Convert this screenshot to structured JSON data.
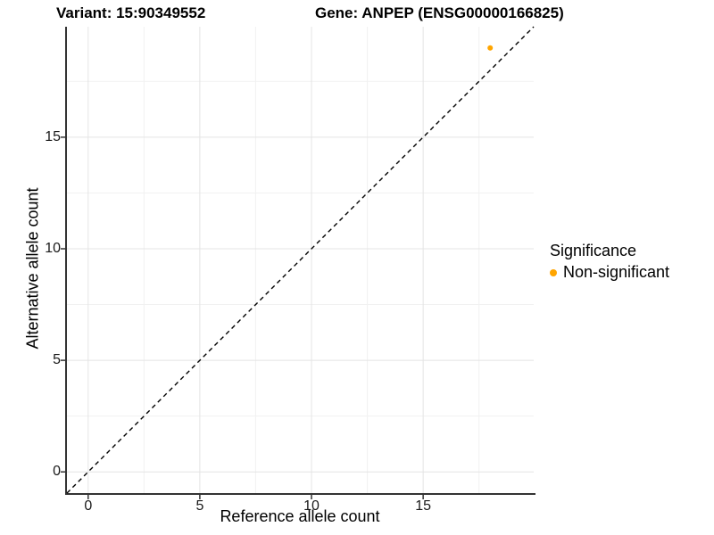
{
  "figure": {
    "title_left": "Variant: 15:90349552",
    "title_right": "Gene: ANPEP (ENSG00000166825)"
  },
  "chart_data": {
    "type": "scatter",
    "xlabel": "Reference allele count",
    "ylabel": "Alternative allele count",
    "xlim": [
      -0.95,
      19.95
    ],
    "ylim": [
      -0.95,
      19.95
    ],
    "xticks": [
      0,
      5,
      10,
      15
    ],
    "yticks": [
      0,
      5,
      10,
      15
    ],
    "minor_xticks": [
      2.5,
      7.5,
      12.5,
      17.5
    ],
    "minor_yticks": [
      2.5,
      7.5,
      12.5,
      17.5
    ],
    "grid": true,
    "identity_line": {
      "slope": 1,
      "intercept": 0,
      "style": "dashed",
      "color": "#000000"
    },
    "series": [
      {
        "name": "Non-significant",
        "color": "#FFA500",
        "points": [
          {
            "x": 18,
            "y": 19
          }
        ]
      }
    ],
    "legend": {
      "title": "Significance",
      "position": "right",
      "items": [
        {
          "label": "Non-significant",
          "color": "#FFA500"
        }
      ]
    },
    "colors": {
      "grid_major": "#E4E4E4",
      "grid_minor": "#F1F1F1",
      "axis_line": "#333333",
      "tick_mark": "#333333",
      "tick_text": "#1a1a1a"
    }
  }
}
